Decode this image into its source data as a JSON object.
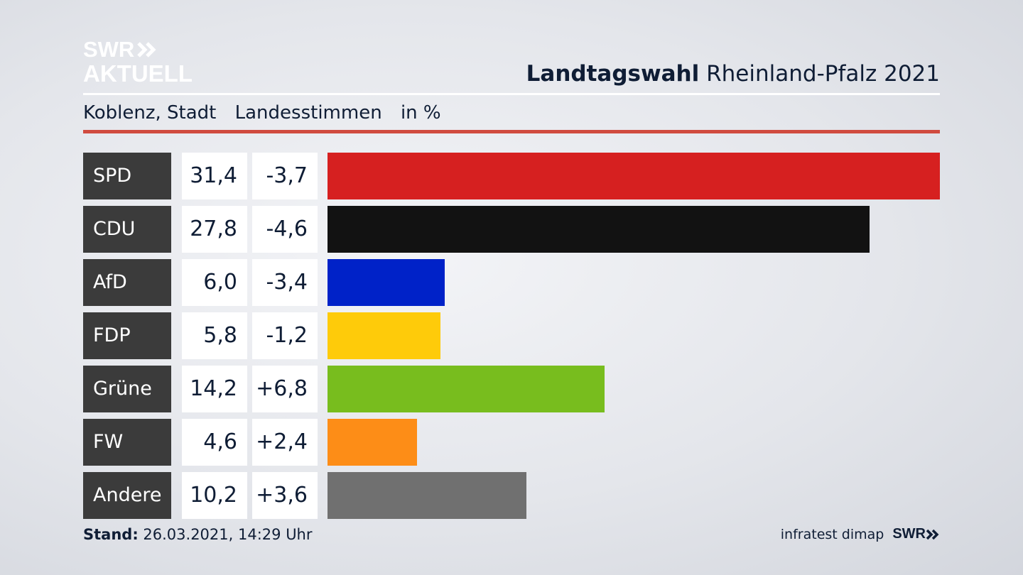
{
  "logo": {
    "line1": "SWR",
    "line2": "AKTUELL"
  },
  "header": {
    "title_bold": "Landtagswahl",
    "title_rest": "Rheinland-Pfalz 2021"
  },
  "subheader": {
    "region": "Koblenz, Stadt",
    "vote_type": "Landesstimmen",
    "unit": "in %"
  },
  "colors": {
    "accent_rule": "#d04b3f",
    "label_bg": "#3b3b3b",
    "text": "#0f1d35"
  },
  "chart_data": {
    "type": "bar",
    "orientation": "horizontal",
    "title": "Landtagswahl Rheinland-Pfalz 2021",
    "unit": "in %",
    "categories": [
      "SPD",
      "CDU",
      "AfD",
      "FDP",
      "Grüne",
      "FW",
      "Andere"
    ],
    "values": [
      31.4,
      27.8,
      6.0,
      5.8,
      14.2,
      4.6,
      10.2
    ],
    "value_labels": [
      "31,4",
      "27,8",
      "6,0",
      "5,8",
      "14,2",
      "4,6",
      "10,2"
    ],
    "change_labels": [
      "-3,7",
      "-4,6",
      "-3,4",
      "-1,2",
      "+6,8",
      "+2,4",
      "+3,6"
    ],
    "bar_colors": [
      "#d62020",
      "#121212",
      "#0022c8",
      "#fecb0a",
      "#78bd1e",
      "#fd8d17",
      "#707070"
    ],
    "xlim": [
      0,
      31.4
    ],
    "grid": false,
    "legend": "none"
  },
  "footer": {
    "stand_label": "Stand:",
    "stand_value": "26.03.2021, 14:29 Uhr",
    "source": "infratest dimap",
    "brand": "SWR"
  }
}
